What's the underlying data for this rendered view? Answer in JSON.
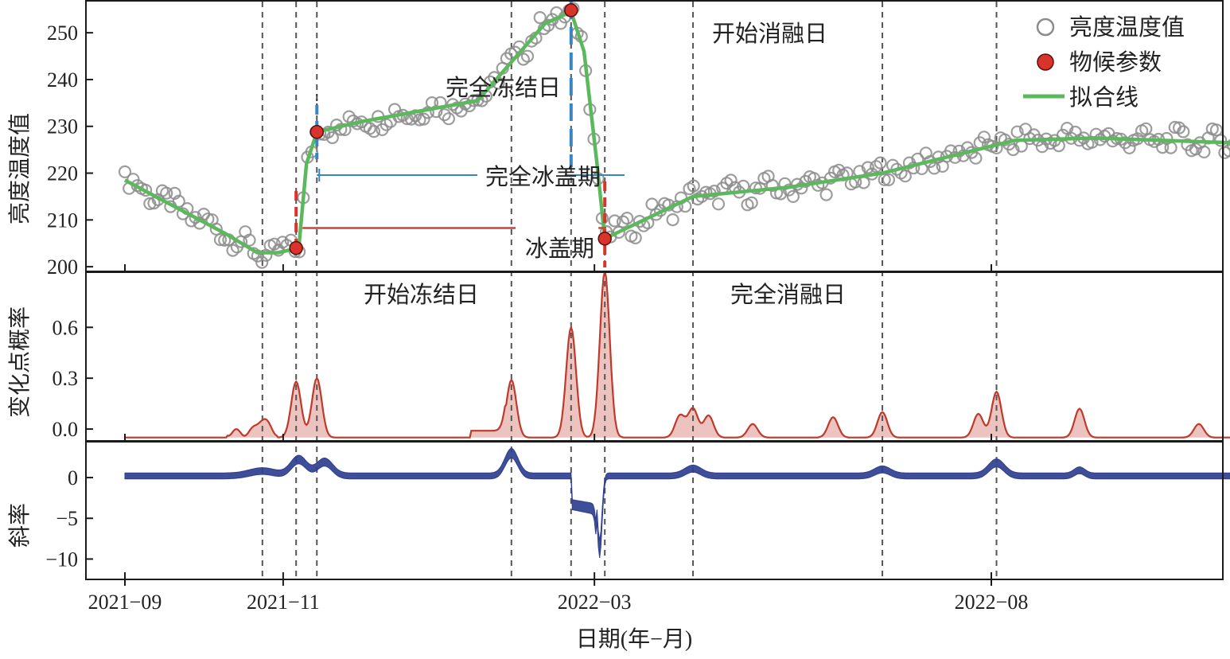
{
  "chart_data": [
    {
      "type": "scatter",
      "ylabel": "亮度温度值",
      "ylim": [
        199,
        257
      ],
      "yticks": [
        "200",
        "210",
        "220",
        "230",
        "240",
        "250"
      ],
      "series_names": {
        "observed": "亮度温度值",
        "phenology": "物候参数",
        "fit": "拟合线"
      },
      "fit_line": [
        {
          "x": "2021-09-01",
          "y": 218.5
        },
        {
          "x": "2021-10-10",
          "y": 207
        },
        {
          "x": "2021-10-22",
          "y": 203
        },
        {
          "x": "2021-10-30",
          "y": 203
        },
        {
          "x": "2021-11-07",
          "y": 204
        },
        {
          "x": "2021-11-10",
          "y": 222
        },
        {
          "x": "2021-11-14",
          "y": 228.8
        },
        {
          "x": "2021-12-01",
          "y": 231
        },
        {
          "x": "2022-01-15",
          "y": 235.5
        },
        {
          "x": "2022-02-10",
          "y": 252
        },
        {
          "x": "2022-02-20",
          "y": 254.5
        },
        {
          "x": "2022-02-25",
          "y": 246
        },
        {
          "x": "2022-03-02",
          "y": 222
        },
        {
          "x": "2022-03-05",
          "y": 206
        },
        {
          "x": "2022-04-08",
          "y": 215
        },
        {
          "x": "2022-05-15",
          "y": 217
        },
        {
          "x": "2022-06-20",
          "y": 220
        },
        {
          "x": "2022-08-10",
          "y": 227
        },
        {
          "x": "2022-09-10",
          "y": 227.5
        },
        {
          "x": "2022-11-01",
          "y": 226.5
        }
      ],
      "phenology_points": [
        {
          "x": "2021-11-06",
          "y": 204
        },
        {
          "x": "2021-11-14",
          "y": 228.8
        },
        {
          "x": "2022-02-20",
          "y": 254.8
        },
        {
          "x": "2022-03-05",
          "y": 206
        }
      ],
      "annotations": {
        "start_freeze": "开始冻结日",
        "full_freeze": "完全冻结日",
        "start_melt": "开始消融日",
        "full_melt": "完全消融日",
        "full_ice_period": "完全冰盖期",
        "ice_period": "冰盖期"
      },
      "colors": {
        "fit": "#5cb85c",
        "phenology": "#d9342b",
        "freeze_marker": "#d9342b",
        "melt_marker": "#3a84c0",
        "observed": "#8c8c8c"
      }
    },
    {
      "type": "area",
      "ylabel": "变化点概率",
      "ylim": [
        -0.07,
        0.93
      ],
      "yticks": [
        "0.0",
        "0.3",
        "0.6"
      ],
      "color": "#c0392b",
      "peaks": [
        {
          "x": "2021-10-24",
          "y": 0.04
        },
        {
          "x": "2021-11-06",
          "y": 0.28
        },
        {
          "x": "2021-11-14",
          "y": 0.3
        },
        {
          "x": "2022-01-28",
          "y": 0.29
        },
        {
          "x": "2022-02-20",
          "y": 0.6
        },
        {
          "x": "2022-03-05",
          "y": 0.93
        },
        {
          "x": "2022-04-03",
          "y": 0.08
        },
        {
          "x": "2022-04-08",
          "y": 0.12
        },
        {
          "x": "2022-04-14",
          "y": 0.08
        },
        {
          "x": "2022-05-01",
          "y": 0.03
        },
        {
          "x": "2022-06-01",
          "y": 0.07
        },
        {
          "x": "2022-06-20",
          "y": 0.1
        },
        {
          "x": "2022-07-27",
          "y": 0.09
        },
        {
          "x": "2022-08-03",
          "y": 0.22
        },
        {
          "x": "2022-09-04",
          "y": 0.12
        },
        {
          "x": "2022-10-20",
          "y": 0.03
        },
        {
          "x": "2022-11-15",
          "y": 0.04
        }
      ]
    },
    {
      "type": "area",
      "ylabel": "斜率",
      "ylim": [
        -12.5,
        4.5
      ],
      "yticks": [
        "0",
        "−5",
        "−10"
      ],
      "color": "#2e3f8f",
      "series": [
        {
          "x": "2021-09-01",
          "y": 0.2
        },
        {
          "x": "2021-11-06",
          "y": 2.5
        },
        {
          "x": "2021-11-18",
          "y": 2.0
        },
        {
          "x": "2022-01-28",
          "y": 1.5
        },
        {
          "x": "2022-02-20",
          "y": -3.3
        },
        {
          "x": "2022-03-01",
          "y": -4.0
        },
        {
          "x": "2022-03-03",
          "y": -10.5
        },
        {
          "x": "2022-03-10",
          "y": 0.3
        },
        {
          "x": "2022-11-15",
          "y": 0.3
        }
      ]
    }
  ],
  "xaxis": {
    "label": "日期(年−月)",
    "ticks": [
      {
        "x": "2021-09-01",
        "label": "2021−09"
      },
      {
        "x": "2021-11-01",
        "label": "2021−11"
      },
      {
        "x": "2022-03-01",
        "label": "2022−03"
      },
      {
        "x": "2022-08-01",
        "label": "2022−08"
      }
    ]
  },
  "breakpoints": [
    "2021-10-24",
    "2021-11-06",
    "2021-11-14",
    "2022-01-28",
    "2022-02-20",
    "2022-03-05",
    "2022-04-08",
    "2022-06-20",
    "2022-08-03"
  ]
}
